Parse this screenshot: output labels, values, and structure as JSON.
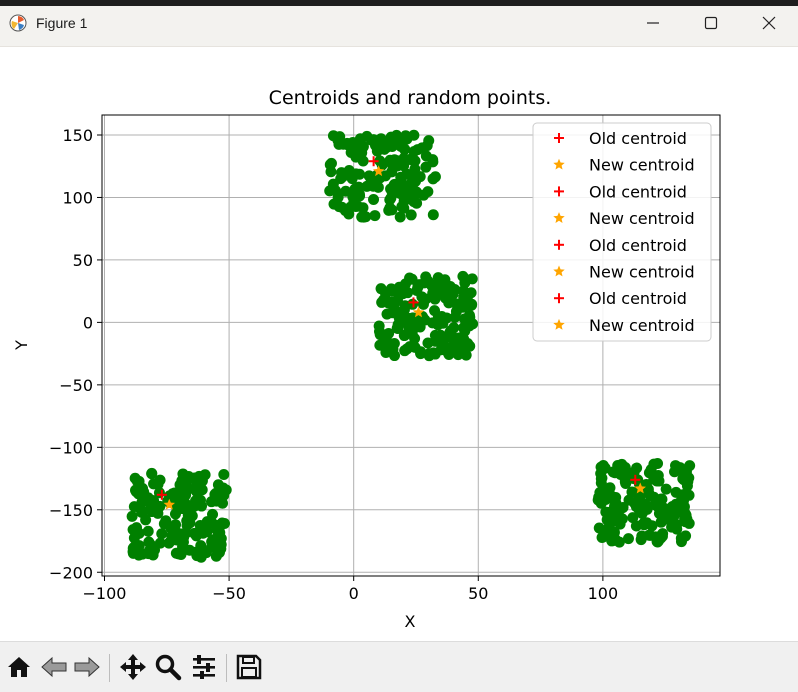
{
  "window": {
    "title": "Figure 1",
    "controls": [
      "minimize-icon",
      "maximize-icon",
      "close-icon"
    ]
  },
  "toolbar": {
    "buttons": [
      "home-icon",
      "back-icon",
      "forward-icon",
      "pan-icon",
      "zoom-icon",
      "configure-subplots-icon",
      "save-icon"
    ]
  },
  "colors": {
    "points": "#008000",
    "old_centroid": "#ff0000",
    "new_centroid": "#ffa500",
    "grid": "#b0b0b0"
  },
  "chart_data": {
    "type": "scatter",
    "title": "Centroids and random points.",
    "xlabel": "X",
    "ylabel": "Y",
    "xlim": [
      -101,
      147
    ],
    "ylim": [
      -203,
      166
    ],
    "xticks": [
      -100,
      -50,
      0,
      50,
      100
    ],
    "yticks": [
      150,
      100,
      50,
      0,
      -50,
      -100,
      -150,
      -200
    ],
    "xtick_labels": [
      "−100",
      "−50",
      "0",
      "50",
      "100"
    ],
    "ytick_labels": [
      "150",
      "100",
      "50",
      "0",
      "−50",
      "−100",
      "−150",
      "−200"
    ],
    "grid": true,
    "legend_position": "top-right",
    "legend": [
      {
        "label": "Old centroid",
        "marker": "plus",
        "color": "#ff0000"
      },
      {
        "label": "New centroid",
        "marker": "star",
        "color": "#ffa500"
      },
      {
        "label": "Old centroid",
        "marker": "plus",
        "color": "#ff0000"
      },
      {
        "label": "New centroid",
        "marker": "star",
        "color": "#ffa500"
      },
      {
        "label": "Old centroid",
        "marker": "plus",
        "color": "#ff0000"
      },
      {
        "label": "New centroid",
        "marker": "star",
        "color": "#ffa500"
      },
      {
        "label": "Old centroid",
        "marker": "plus",
        "color": "#ff0000"
      },
      {
        "label": "New centroid",
        "marker": "star",
        "color": "#ffa500"
      }
    ],
    "clusters": [
      {
        "x_range": [
          -10,
          33
        ],
        "y_range": [
          84,
          150
        ],
        "count": 160
      },
      {
        "x_range": [
          10,
          48
        ],
        "y_range": [
          -27,
          37
        ],
        "count": 160
      },
      {
        "x_range": [
          -89,
          -51
        ],
        "y_range": [
          -188,
          -119
        ],
        "count": 160
      },
      {
        "x_range": [
          98,
          136
        ],
        "y_range": [
          -176,
          -111
        ],
        "count": 160
      }
    ],
    "old_centroids": [
      {
        "x": 8,
        "y": 129
      },
      {
        "x": 24,
        "y": 16
      },
      {
        "x": -77,
        "y": -138
      },
      {
        "x": 113,
        "y": -126
      }
    ],
    "new_centroids": [
      {
        "x": 10,
        "y": 121
      },
      {
        "x": 26,
        "y": 8
      },
      {
        "x": -74,
        "y": -146
      },
      {
        "x": 115,
        "y": -133
      }
    ]
  }
}
